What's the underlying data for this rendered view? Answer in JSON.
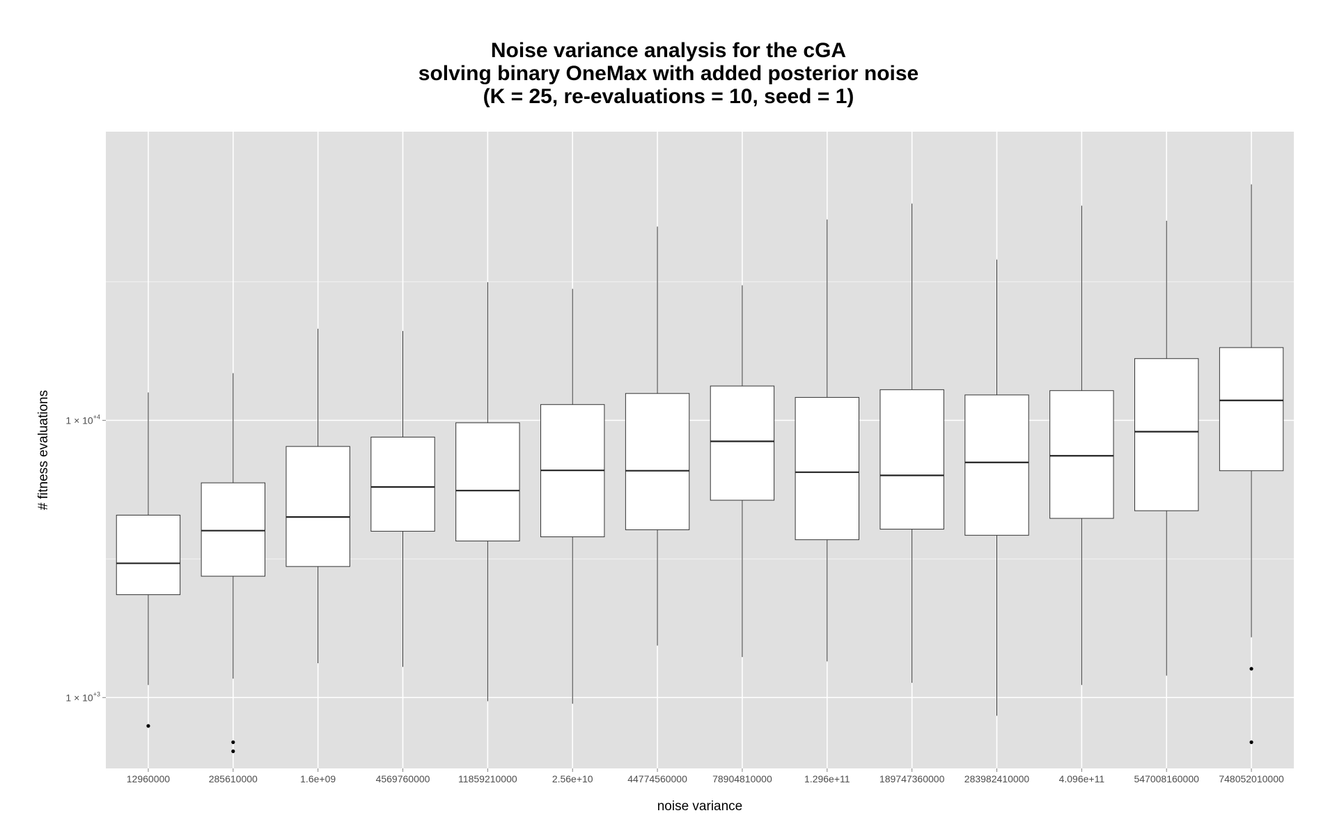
{
  "chart_data": {
    "type": "box",
    "title_lines": [
      "Noise variance analysis for the cGA",
      "solving binary OneMax with added posterior noise",
      "(K = 25, re-evaluations = 10, seed = 1)"
    ],
    "xlabel": "noise variance",
    "ylabel": "# fitness evaluations",
    "yscale": "log10",
    "ylim": [
      555,
      110000
    ],
    "y_ticks": [
      {
        "value": 1000,
        "base": "1 × 10",
        "exp": "+3"
      },
      {
        "value": 10000,
        "base": "1 × 10",
        "exp": "+4"
      }
    ],
    "grid": true,
    "background": "#e0e0e0",
    "grid_color": "#ffffff",
    "categories": [
      "12960000",
      "285610000",
      "1.6e+09",
      "4569760000",
      "11859210000",
      "2.56e+10",
      "44774560000",
      "78904810000",
      "1.296e+11",
      "189747360000",
      "283982410000",
      "4.096e+11",
      "547008160000",
      "748052010000"
    ],
    "boxes": [
      {
        "whisker_low": 1110,
        "q1": 2350,
        "median": 3050,
        "q3": 4550,
        "whisker_high": 12600,
        "outliers": [
          790
        ]
      },
      {
        "whisker_low": 1170,
        "q1": 2740,
        "median": 4000,
        "q3": 5950,
        "whisker_high": 14800,
        "outliers": [
          690,
          640
        ]
      },
      {
        "whisker_low": 1330,
        "q1": 2970,
        "median": 4480,
        "q3": 8050,
        "whisker_high": 21400,
        "outliers": []
      },
      {
        "whisker_low": 1290,
        "q1": 3980,
        "median": 5750,
        "q3": 8700,
        "whisker_high": 21000,
        "outliers": []
      },
      {
        "whisker_low": 970,
        "q1": 3670,
        "median": 5580,
        "q3": 9800,
        "whisker_high": 31500,
        "outliers": []
      },
      {
        "whisker_low": 950,
        "q1": 3800,
        "median": 6600,
        "q3": 11400,
        "whisker_high": 29800,
        "outliers": []
      },
      {
        "whisker_low": 1540,
        "q1": 4030,
        "median": 6580,
        "q3": 12500,
        "whisker_high": 50000,
        "outliers": []
      },
      {
        "whisker_low": 1400,
        "q1": 5150,
        "median": 8400,
        "q3": 13300,
        "whisker_high": 30700,
        "outliers": []
      },
      {
        "whisker_low": 1350,
        "q1": 3710,
        "median": 6500,
        "q3": 12100,
        "whisker_high": 53000,
        "outliers": []
      },
      {
        "whisker_low": 1130,
        "q1": 4050,
        "median": 6330,
        "q3": 12900,
        "whisker_high": 60500,
        "outliers": []
      },
      {
        "whisker_low": 860,
        "q1": 3850,
        "median": 7050,
        "q3": 12350,
        "whisker_high": 38000,
        "outliers": []
      },
      {
        "whisker_low": 1110,
        "q1": 4430,
        "median": 7450,
        "q3": 12800,
        "whisker_high": 59500,
        "outliers": []
      },
      {
        "whisker_low": 1200,
        "q1": 4720,
        "median": 9100,
        "q3": 16700,
        "whisker_high": 52500,
        "outliers": []
      },
      {
        "whisker_low": 1650,
        "q1": 6580,
        "median": 11800,
        "q3": 18300,
        "whisker_high": 71000,
        "outliers": [
          1270,
          690
        ]
      }
    ]
  }
}
